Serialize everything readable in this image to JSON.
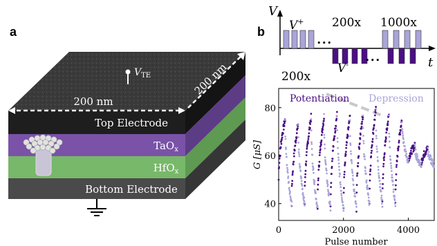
{
  "panel_a": {
    "label": "a",
    "top_dimension": "200 nm",
    "side_dimension": "200 nm",
    "terminal_label": "V",
    "terminal_subscript": "TE",
    "layers": [
      {
        "name": "Top Electrode",
        "color": "#1e1e1e"
      },
      {
        "name": "TaO",
        "subscript": "x",
        "color": "#7a52a8"
      },
      {
        "name": "HfO",
        "subscript": "x",
        "color": "#78b86a"
      },
      {
        "name": "Bottom Electrode",
        "color": "#4a4a4a"
      }
    ],
    "top_surface_color": "#3c3c3c"
  },
  "panel_b": {
    "label": "b",
    "pulse_scheme": {
      "v_axis": "V",
      "t_axis": "t",
      "v_plus": "V",
      "v_plus_sup": "+",
      "v_minus": "V",
      "v_minus_sup": "-",
      "count_1": "200x",
      "count_2": "1000x",
      "count_3": "200x",
      "dots": "•••",
      "light_pulse_color": "#a9a5d8",
      "dark_pulse_color": "#4b0f84"
    },
    "chart_data": {
      "type": "scatter",
      "ylabel": "G [μS]",
      "xlabel": "Pulse number",
      "xlim": [
        0,
        4800
      ],
      "ylim": [
        33,
        88
      ],
      "xticks": [
        0,
        2000,
        4000
      ],
      "yticks": [
        40,
        60,
        80
      ],
      "legend_position": "top",
      "series": [
        {
          "name": "Potentiation",
          "color": "#4b0f84",
          "cycles": [
            {
              "x0": 0,
              "x1": 200,
              "y0": 50,
              "y1": 75
            },
            {
              "x0": 400,
              "x1": 600,
              "y0": 40,
              "y1": 73
            },
            {
              "x0": 800,
              "x1": 1000,
              "y0": 40,
              "y1": 76
            },
            {
              "x0": 1200,
              "x1": 1400,
              "y0": 38,
              "y1": 76
            },
            {
              "x0": 1600,
              "x1": 1800,
              "y0": 38,
              "y1": 77
            },
            {
              "x0": 2000,
              "x1": 2200,
              "y0": 38,
              "y1": 76
            },
            {
              "x0": 2400,
              "x1": 2600,
              "y0": 38,
              "y1": 77
            },
            {
              "x0": 2800,
              "x1": 3000,
              "y0": 40,
              "y1": 79
            },
            {
              "x0": 3200,
              "x1": 3400,
              "y0": 40,
              "y1": 77
            },
            {
              "x0": 3600,
              "x1": 3800,
              "y0": 40,
              "y1": 75
            },
            {
              "x0": 4000,
              "x1": 4200,
              "y0": 57,
              "y1": 64
            },
            {
              "x0": 4400,
              "x1": 4600,
              "y0": 56,
              "y1": 63
            }
          ]
        },
        {
          "name": "Depression",
          "color": "#a9a5d8",
          "cycles": [
            {
              "x0": 200,
              "x1": 400,
              "y0": 75,
              "y1": 40
            },
            {
              "x0": 600,
              "x1": 800,
              "y0": 73,
              "y1": 40
            },
            {
              "x0": 1000,
              "x1": 1200,
              "y0": 76,
              "y1": 38
            },
            {
              "x0": 1400,
              "x1": 1600,
              "y0": 76,
              "y1": 38
            },
            {
              "x0": 1800,
              "x1": 2000,
              "y0": 77,
              "y1": 38
            },
            {
              "x0": 2200,
              "x1": 2400,
              "y0": 76,
              "y1": 38
            },
            {
              "x0": 2600,
              "x1": 2800,
              "y0": 77,
              "y1": 40
            },
            {
              "x0": 3000,
              "x1": 3200,
              "y0": 79,
              "y1": 40
            },
            {
              "x0": 3400,
              "x1": 3600,
              "y0": 77,
              "y1": 40
            },
            {
              "x0": 3800,
              "x1": 4000,
              "y0": 75,
              "y1": 57
            },
            {
              "x0": 4200,
              "x1": 4400,
              "y0": 64,
              "y1": 56
            },
            {
              "x0": 4600,
              "x1": 4800,
              "y0": 63,
              "y1": 56
            }
          ]
        }
      ]
    }
  }
}
